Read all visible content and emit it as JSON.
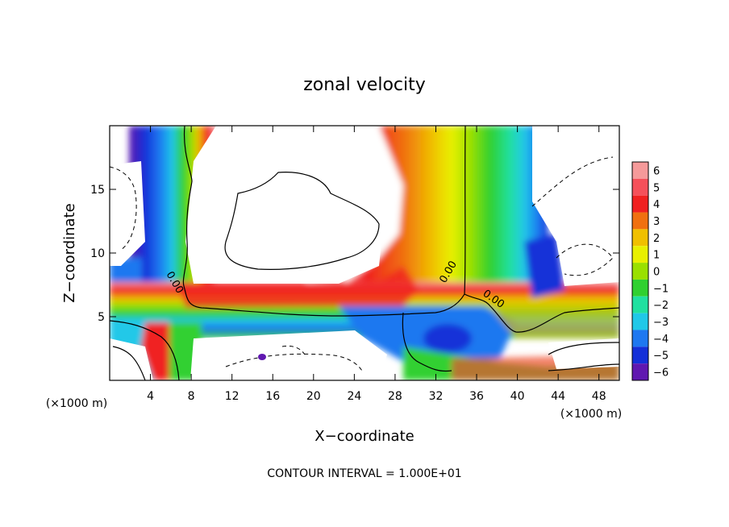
{
  "chart_data": {
    "type": "heatmap",
    "title": "zonal velocity",
    "xlabel": "X−coordinate",
    "ylabel": "Z−coordinate",
    "x_unit_left": "(×1000 m)",
    "x_unit_right": "(×1000 m)",
    "footer": "CONTOUR INTERVAL = 1.000E+01",
    "xlim": [
      0,
      50
    ],
    "ylim": [
      0,
      20
    ],
    "x_ticks": [
      4,
      8,
      12,
      16,
      20,
      24,
      28,
      32,
      36,
      40,
      44,
      48
    ],
    "x_tick_labels": [
      "4",
      "8",
      "12",
      "16",
      "20",
      "24",
      "28",
      "32",
      "36",
      "40",
      "44",
      "48"
    ],
    "y_ticks": [
      5,
      10,
      15
    ],
    "y_tick_labels": [
      "5",
      "10",
      "15"
    ],
    "colorbar": {
      "levels": [
        6,
        5,
        4,
        3,
        2,
        1,
        0,
        -1,
        -2,
        -3,
        -4,
        -5,
        -6
      ],
      "labels": [
        "6",
        "5",
        "4",
        "3",
        "2",
        "1",
        "0",
        "−1",
        "−2",
        "−3",
        "−4",
        "−5",
        "−6"
      ],
      "colors": [
        "#f59a9a",
        "#f5505a",
        "#f02020",
        "#f07010",
        "#f0c000",
        "#e8f000",
        "#9ae000",
        "#30d030",
        "#20e0a0",
        "#20c8e8",
        "#1e78f0",
        "#1430d8",
        "#6018b0"
      ]
    },
    "contour_labels": [
      "0.00",
      "0.00",
      "0.00"
    ]
  }
}
